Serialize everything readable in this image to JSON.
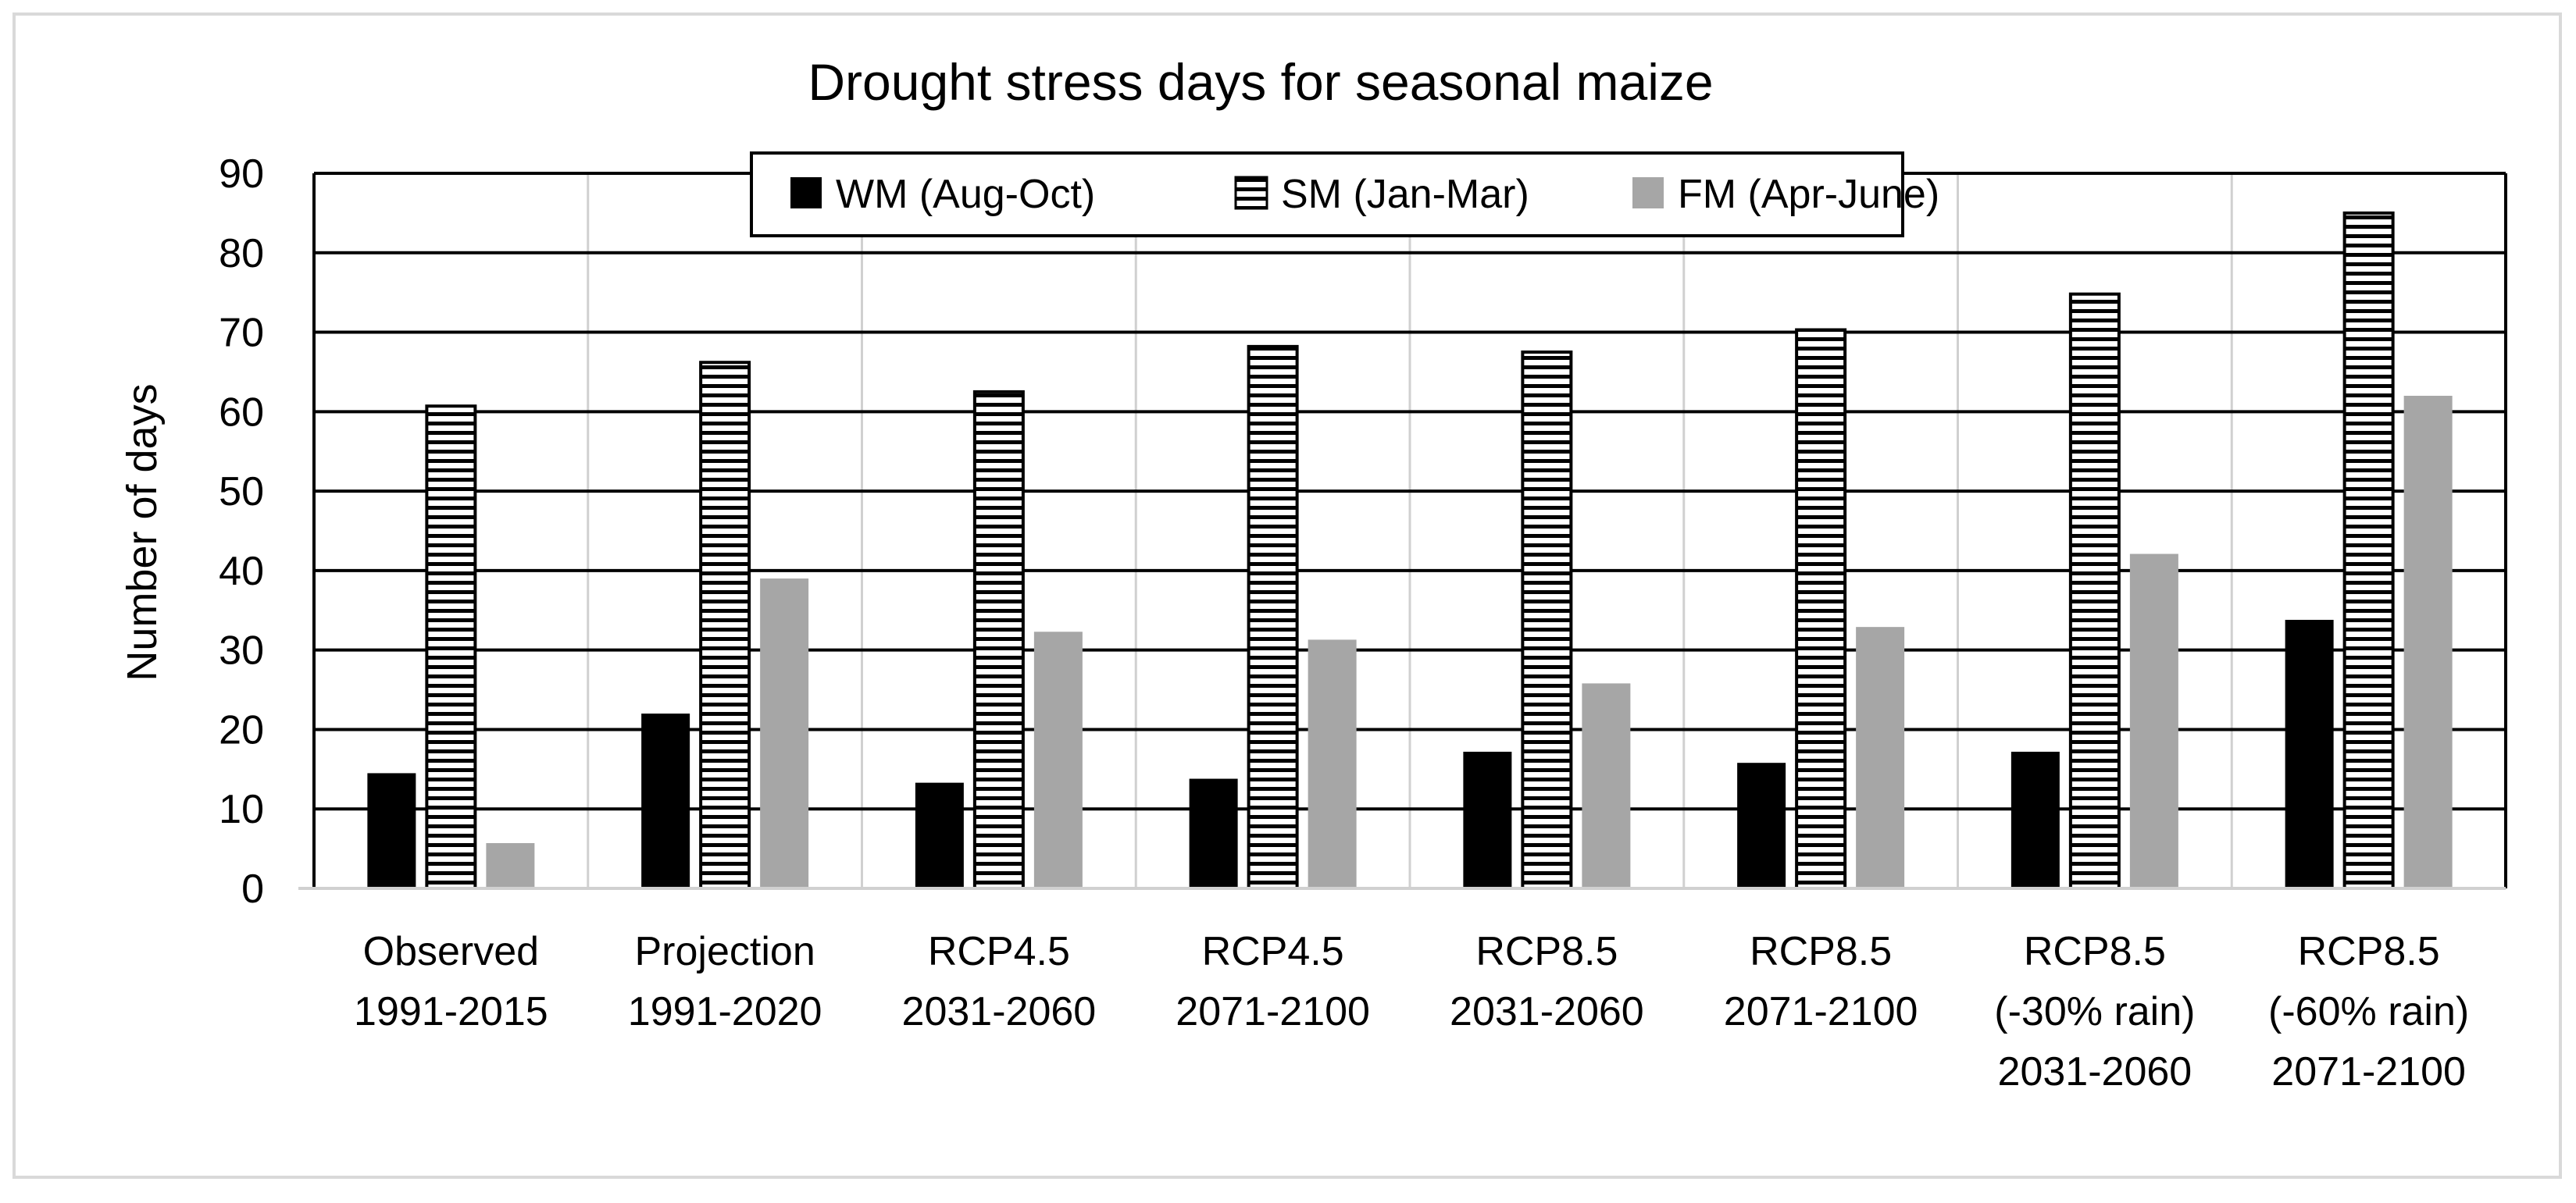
{
  "chart_data": {
    "type": "bar",
    "title": "Drought stress days for seasonal maize",
    "xlabel": "",
    "ylabel": "Number of days",
    "ylim": [
      0,
      90
    ],
    "yticks": [
      0,
      10,
      20,
      30,
      40,
      50,
      60,
      70,
      80,
      90
    ],
    "grid": true,
    "legend_position": "top-center",
    "categories": [
      [
        "Observed",
        "1991-2015"
      ],
      [
        "Projection",
        "1991-2020"
      ],
      [
        "RCP4.5",
        "2031-2060"
      ],
      [
        "RCP4.5",
        "2071-2100"
      ],
      [
        "RCP8.5",
        "2031-2060"
      ],
      [
        "RCP8.5",
        "2071-2100"
      ],
      [
        "RCP8.5",
        "(-30% rain)",
        "2031-2060"
      ],
      [
        "RCP8.5",
        "(-60% rain)",
        "2071-2100"
      ]
    ],
    "series": [
      {
        "name": "WM (Aug-Oct)",
        "style": "solid",
        "color": "#000000",
        "values": [
          14.5,
          22,
          13.3,
          13.8,
          17.2,
          15.8,
          17.2,
          33.8
        ]
      },
      {
        "name": "SM (Jan-Mar)",
        "style": "horizontal-stripes",
        "color": "#ffffff",
        "values": [
          60.7,
          66.2,
          62.5,
          68.2,
          67.5,
          70.3,
          74.8,
          85
        ]
      },
      {
        "name": "FM (Apr-June)",
        "style": "solid",
        "color": "#a6a6a6",
        "values": [
          5.7,
          39,
          32.3,
          31.3,
          25.8,
          32.9,
          42.1,
          62
        ]
      }
    ]
  }
}
